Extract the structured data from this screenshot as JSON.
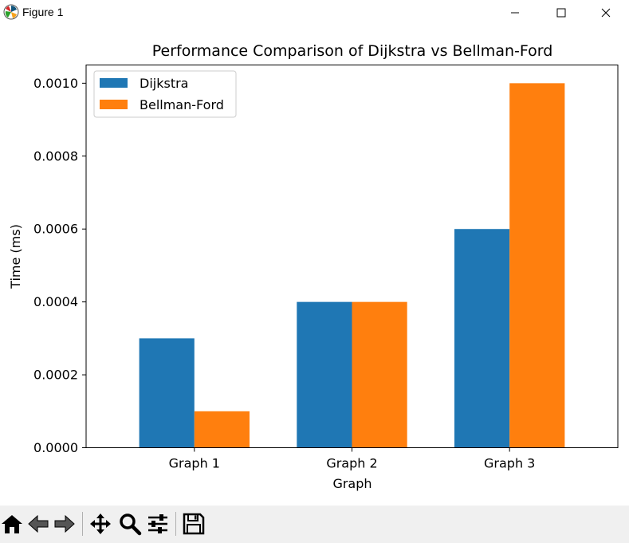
{
  "window": {
    "title": "Figure 1",
    "icon": "matplotlib-logo-icon",
    "controls": [
      "minimize-icon",
      "maximize-icon",
      "close-icon"
    ]
  },
  "toolbar": {
    "buttons": [
      "home-icon",
      "back-arrow-icon",
      "forward-arrow-icon",
      "pan-icon",
      "zoom-icon",
      "configure-subplots-icon",
      "save-icon"
    ]
  },
  "chart_data": {
    "type": "bar",
    "title": "Performance Comparison of Dijkstra vs Bellman-Ford",
    "xlabel": "Graph",
    "ylabel": "Time (ms)",
    "categories": [
      "Graph 1",
      "Graph 2",
      "Graph 3"
    ],
    "series": [
      {
        "name": "Dijkstra",
        "values": [
          0.0003,
          0.0004,
          0.0006
        ],
        "color": "#1f77b4"
      },
      {
        "name": "Bellman-Ford",
        "values": [
          0.0001,
          0.0004,
          0.001
        ],
        "color": "#ff7f0e"
      }
    ],
    "ylim": [
      0,
      0.00105
    ],
    "yticks": [
      "0.0000",
      "0.0002",
      "0.0004",
      "0.0006",
      "0.0008",
      "0.0010"
    ],
    "ytick_values": [
      0,
      0.0002,
      0.0004,
      0.0006,
      0.0008,
      0.001
    ],
    "legend_position": "top-left",
    "grid": false
  }
}
